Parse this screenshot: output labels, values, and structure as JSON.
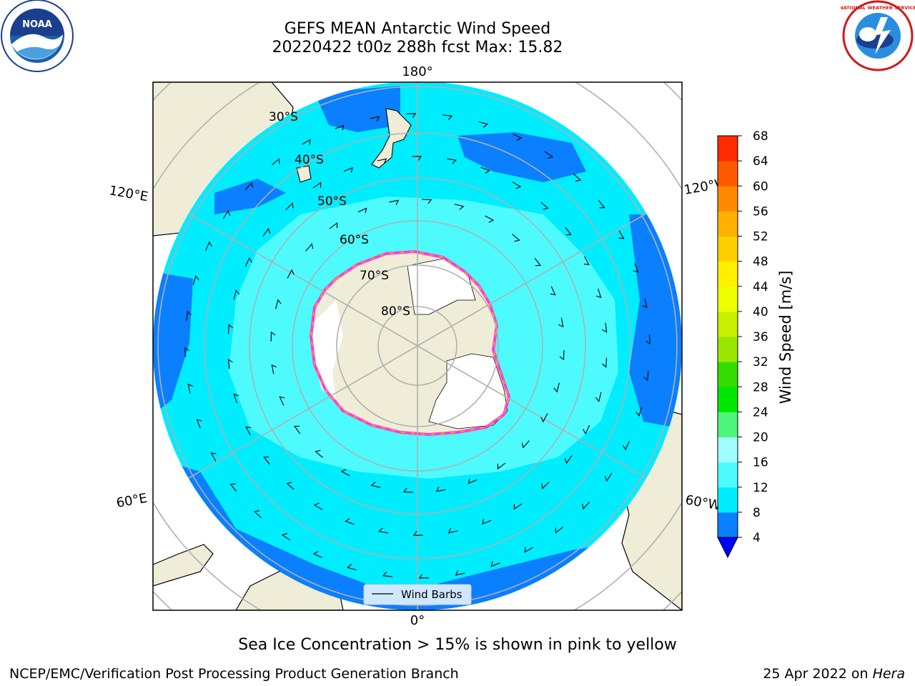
{
  "header": {
    "title_line1": "GEFS MEAN Antarctic Wind Speed",
    "title_line2": "20220422 t00z 288h fcst   Max: 15.82"
  },
  "logos": {
    "left": {
      "icon": "noaa-logo",
      "text": "NOAA"
    },
    "right": {
      "icon": "nws-logo",
      "text": "NATIONAL WEATHER SERVICE"
    }
  },
  "map": {
    "projection": "south-polar-stereographic",
    "longitude_labels": [
      "180°",
      "120°E",
      "120°W",
      "60°E",
      "60°W",
      "0°"
    ],
    "latitude_labels": [
      "30°S",
      "40°S",
      "50°S",
      "60°S",
      "70°S",
      "80°S"
    ],
    "legend_label": "Wind Barbs",
    "colors": {
      "land": "#efedd8",
      "ice_sheet": "#ffffff",
      "speed_4_8": "#0a7fff",
      "speed_8_12": "#00ecff",
      "speed_12_16": "#4dfbff",
      "sea_ice_edge": [
        "#ff3ed2",
        "#ffb000"
      ],
      "grid": "#b0b0b0"
    }
  },
  "colorbar": {
    "label": "Wind Speed [m/s]",
    "ticks": [
      "4",
      "8",
      "12",
      "16",
      "20",
      "24",
      "28",
      "32",
      "36",
      "40",
      "44",
      "48",
      "52",
      "56",
      "60",
      "64",
      "68"
    ],
    "colors": [
      "#0a7fff",
      "#00ecff",
      "#4dfbff",
      "#9efefe",
      "#4df57a",
      "#00e600",
      "#33dc00",
      "#99e600",
      "#c8f000",
      "#eeff00",
      "#fff000",
      "#ffd000",
      "#ffb000",
      "#ff8a00",
      "#ff5a00",
      "#ff2a00",
      "#ff0000"
    ],
    "under_color": "#0000ff"
  },
  "footer": {
    "caption": "Sea Ice Concentration > 15% is shown in pink to yellow",
    "left": "NCEP/EMC/Verification Post Processing Product Generation Branch",
    "right_date": "25 Apr 2022 on ",
    "right_host": "Hera"
  }
}
